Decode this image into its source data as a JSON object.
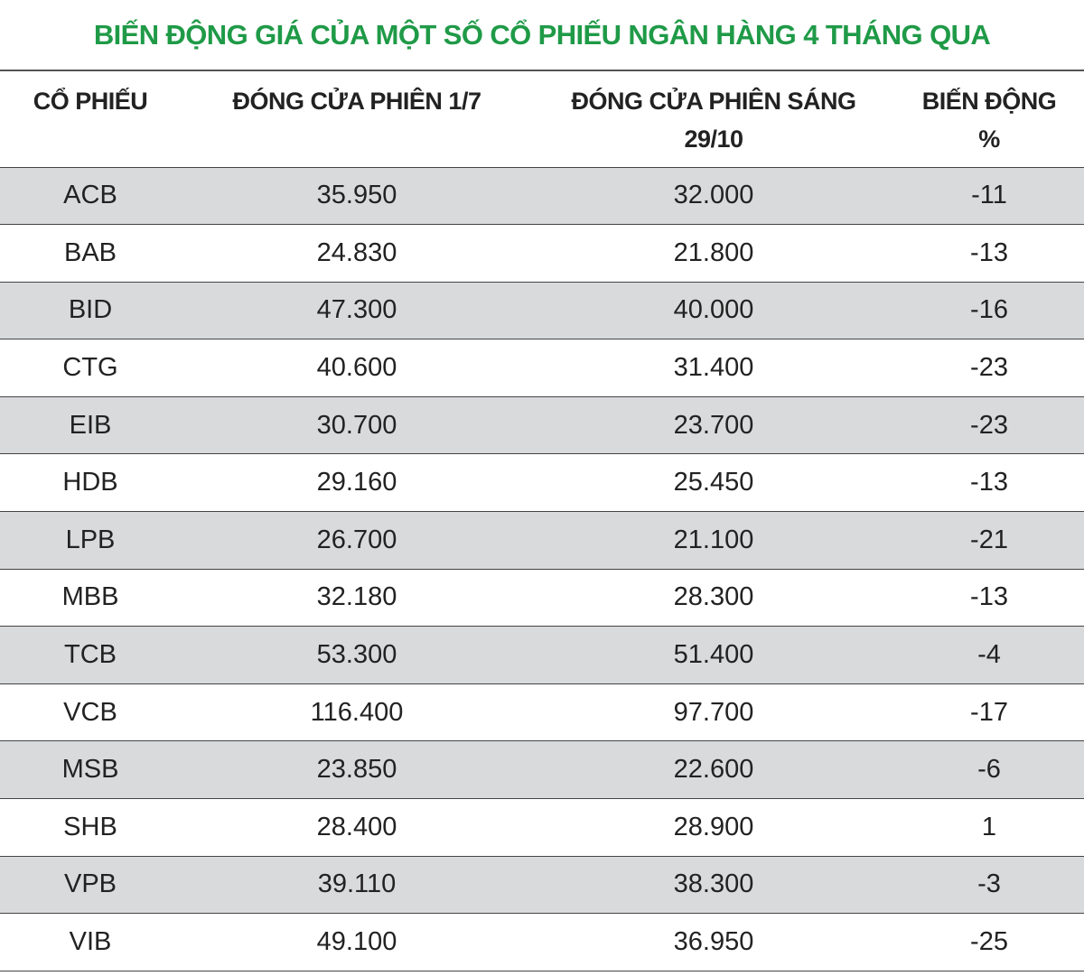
{
  "title": "BIẾN ĐỘNG GIÁ CỦA MỘT SỐ CỔ PHIẾU NGÂN HÀNG 4 THÁNG QUA",
  "table": {
    "header": [
      "CỔ PHIẾU",
      "ĐÓNG CỬA PHIÊN 1/7",
      "ĐÓNG CỬA PHIÊN SÁNG 29/10",
      "BIẾN ĐỘNG %"
    ],
    "rows": [
      [
        "ACB",
        "35.950",
        "32.000",
        "-11"
      ],
      [
        "BAB",
        "24.830",
        "21.800",
        "-13"
      ],
      [
        "BID",
        "47.300",
        "40.000",
        "-16"
      ],
      [
        "CTG",
        "40.600",
        "31.400",
        "-23"
      ],
      [
        "EIB",
        "30.700",
        "23.700",
        "-23"
      ],
      [
        "HDB",
        "29.160",
        "25.450",
        "-13"
      ],
      [
        "LPB",
        "26.700",
        "21.100",
        "-21"
      ],
      [
        "MBB",
        "32.180",
        "28.300",
        "-13"
      ],
      [
        "TCB",
        "53.300",
        "51.400",
        "-4"
      ],
      [
        "VCB",
        "116.400",
        "97.700",
        "-17"
      ],
      [
        "MSB",
        "23.850",
        "22.600",
        "-6"
      ],
      [
        "SHB",
        "28.400",
        "28.900",
        "1"
      ],
      [
        "VPB",
        "39.110",
        "38.300",
        "-3"
      ],
      [
        "VIB",
        "49.100",
        "36.950",
        "-25"
      ]
    ]
  }
}
